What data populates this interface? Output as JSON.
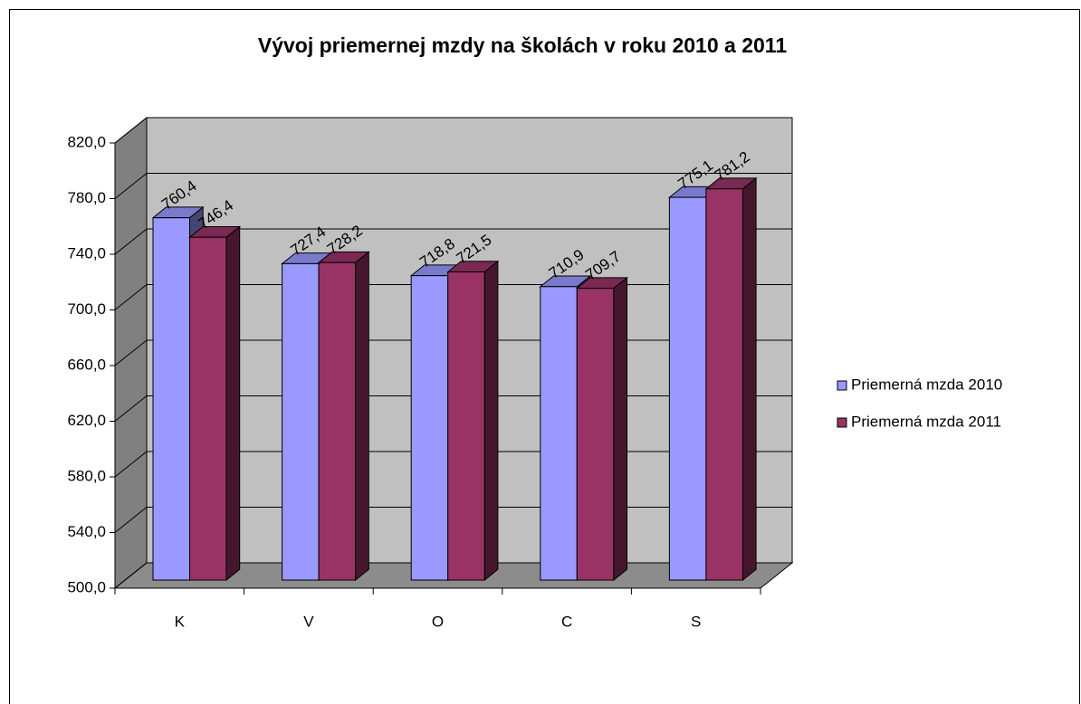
{
  "chart_data": {
    "type": "bar3d",
    "title": "Vývoj priemernej mzdy na školách v roku 2010 a 2011",
    "categories": [
      "K",
      "V",
      "O",
      "C",
      "S"
    ],
    "series": [
      {
        "name": "Priemerná mzda 2010",
        "color": "#9999ff",
        "values": [
          760.4,
          727.4,
          718.8,
          710.9,
          775.1
        ],
        "value_labels": [
          "760,4",
          "727,4",
          "718,8",
          "710,9",
          "775,1"
        ]
      },
      {
        "name": "Priemerná mzda 2011",
        "color": "#993366",
        "values": [
          746.4,
          728.2,
          721.5,
          709.7,
          781.2
        ],
        "value_labels": [
          "746,4",
          "728,2",
          "721,5",
          "709,7",
          "781,2"
        ]
      }
    ],
    "ylim": [
      500,
      820
    ],
    "yticks": [
      {
        "value": 500,
        "label": "500,0"
      },
      {
        "value": 540,
        "label": "540,0"
      },
      {
        "value": 580,
        "label": "580,0"
      },
      {
        "value": 620,
        "label": "620,0"
      },
      {
        "value": 660,
        "label": "660,0"
      },
      {
        "value": 700,
        "label": "700,0"
      },
      {
        "value": 740,
        "label": "740,0"
      },
      {
        "value": 780,
        "label": "780,0"
      },
      {
        "value": 820,
        "label": "820,0"
      }
    ],
    "grid": true,
    "legend": "right"
  }
}
